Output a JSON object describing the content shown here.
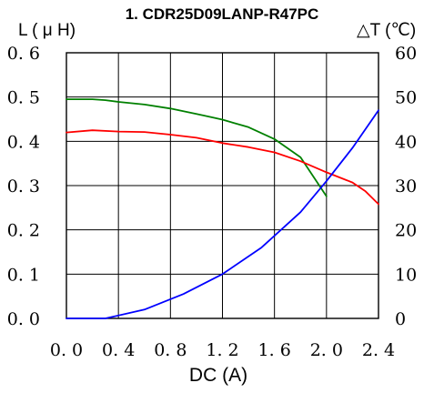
{
  "chart_data": {
    "type": "line",
    "title": "1. CDR25D09LANP-R47PC",
    "xlabel": "DC (A)",
    "ylabel_left": "L ( μ H)",
    "ylabel_right": "△T (℃)",
    "xlim": [
      0,
      2.4
    ],
    "ylim_left": [
      0,
      0.6
    ],
    "ylim_right": [
      0,
      60
    ],
    "x_ticks": [
      "0. 0",
      "0. 4",
      "0. 8",
      "1. 2",
      "1. 6",
      "2. 0",
      "2. 4"
    ],
    "y_ticks_left": [
      "0. 0",
      "0. 1",
      "0. 2",
      "0. 3",
      "0. 4",
      "0. 5",
      "0. 6"
    ],
    "y_ticks_right": [
      "0",
      "10",
      "20",
      "30",
      "40",
      "50",
      "60"
    ],
    "grid": true,
    "series": [
      {
        "axis": "left",
        "color": "#008000",
        "x": [
          0,
          0.2,
          0.3,
          0.4,
          0.6,
          0.8,
          1.0,
          1.2,
          1.4,
          1.6,
          1.8,
          2.0
        ],
        "y": [
          0.495,
          0.495,
          0.493,
          0.489,
          0.483,
          0.474,
          0.462,
          0.449,
          0.432,
          0.405,
          0.364,
          0.276
        ]
      },
      {
        "axis": "left",
        "color": "#ff0000",
        "x": [
          0,
          0.2,
          0.4,
          0.6,
          0.8,
          1.0,
          1.2,
          1.4,
          1.6,
          1.8,
          2.0,
          2.2,
          2.3,
          2.4
        ],
        "y": [
          0.42,
          0.425,
          0.422,
          0.421,
          0.415,
          0.408,
          0.396,
          0.387,
          0.375,
          0.355,
          0.33,
          0.307,
          0.287,
          0.258
        ]
      },
      {
        "axis": "right",
        "color": "#0000ff",
        "x": [
          0,
          0.3,
          0.6,
          0.9,
          1.2,
          1.5,
          1.8,
          2.0,
          2.2,
          2.4
        ],
        "y": [
          0,
          0,
          2,
          5.5,
          10,
          16,
          24,
          31,
          38.5,
          47
        ]
      }
    ]
  }
}
